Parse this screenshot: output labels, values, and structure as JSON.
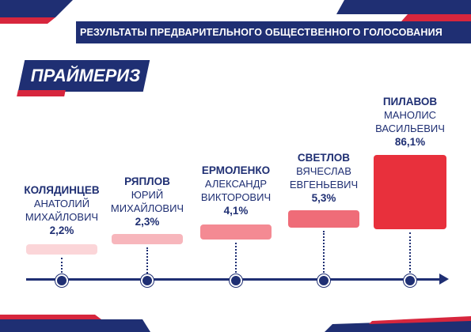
{
  "header": {
    "title": "РЕЗУЛЬТАТЫ ПРЕДВАРИТЕЛЬНОГО ОБЩЕСТВЕННОГО ГОЛОСОВАНИЯ"
  },
  "brand": {
    "label": "ПРАЙМЕРИЗ"
  },
  "colors": {
    "navy": "#1f2f73",
    "red": "#e8303c",
    "bar_scale": [
      "#fbd5d8",
      "#f7b6bc",
      "#f48a93",
      "#ef6c78",
      "#e8303c"
    ]
  },
  "chart_data": {
    "type": "bar",
    "title": "",
    "xlabel": "",
    "ylabel": "",
    "categories": [
      "КОЛЯДИНЦЕВ",
      "РЯПЛОВ",
      "ЕРМОЛЕНКО",
      "СВЕТЛОВ",
      "ПИЛАВОВ"
    ],
    "values": [
      2.2,
      2.3,
      4.1,
      5.3,
      86.1
    ],
    "ylim": [
      0,
      100
    ],
    "candidates": [
      {
        "surname": "КОЛЯДИНЦЕВ",
        "name": "АНАТОЛИЙ",
        "patronymic": "МИХАЙЛОВИЧ",
        "value": 2.2,
        "value_label": "2,2%"
      },
      {
        "surname": "РЯПЛОВ",
        "name": "ЮРИЙ",
        "patronymic": "МИХАЙЛОВИЧ",
        "value": 2.3,
        "value_label": "2,3%"
      },
      {
        "surname": "ЕРМОЛЕНКО",
        "name": "АЛЕКСАНДР",
        "patronymic": "ВИКТОРОВИЧ",
        "value": 4.1,
        "value_label": "4,1%"
      },
      {
        "surname": "СВЕТЛОВ",
        "name": "ВЯЧЕСЛАВ",
        "patronymic": "ЕВГЕНЬЕВИЧ",
        "value": 5.3,
        "value_label": "5,3%"
      },
      {
        "surname": "ПИЛАВОВ",
        "name": "МАНОЛИС",
        "patronymic": "ВАСИЛЬЕВИЧ",
        "value": 86.1,
        "value_label": "86,1%"
      }
    ]
  }
}
